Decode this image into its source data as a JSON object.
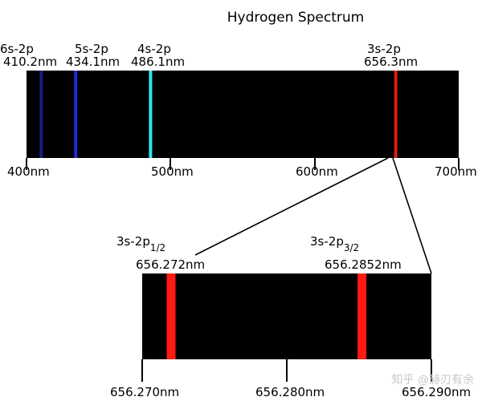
{
  "title": "Hydrogen Spectrum",
  "colors": {
    "background": "#000000",
    "violet": "#1a1a8c",
    "blue": "#1f2bd6",
    "cyan": "#2fe4ee",
    "red": "#e01d12",
    "zoom_red": "#ff1a14"
  },
  "main_spectrum": {
    "range_nm": [
      400,
      700
    ],
    "ticks": [
      "400nm",
      "500nm",
      "600nm",
      "700nm"
    ],
    "lines": [
      {
        "transition": "6s-2p",
        "wavelength": "410.2nm",
        "nm": 410.2,
        "color": "#1a1a8c"
      },
      {
        "transition": "5s-2p",
        "wavelength": "434.1nm",
        "nm": 434.1,
        "color": "#1f2bd6"
      },
      {
        "transition": "4s-2p",
        "wavelength": "486.1nm",
        "nm": 486.1,
        "color": "#2fe4ee"
      },
      {
        "transition": "3s-2p",
        "wavelength": "656.3nm",
        "nm": 656.3,
        "color": "#e01d12"
      }
    ]
  },
  "zoom_spectrum": {
    "range_nm": [
      656.27,
      656.29
    ],
    "ticks": [
      "656.270nm",
      "656.280nm",
      "656.290nm"
    ],
    "lines": [
      {
        "transition_base": "3s-2p",
        "subscript": "1/2",
        "wavelength": "656.272nm",
        "nm": 656.272
      },
      {
        "transition_base": "3s-2p",
        "subscript": "3/2",
        "wavelength": "656.2852nm",
        "nm": 656.2852
      }
    ]
  },
  "watermark": "知乎 @赫刃有余"
}
